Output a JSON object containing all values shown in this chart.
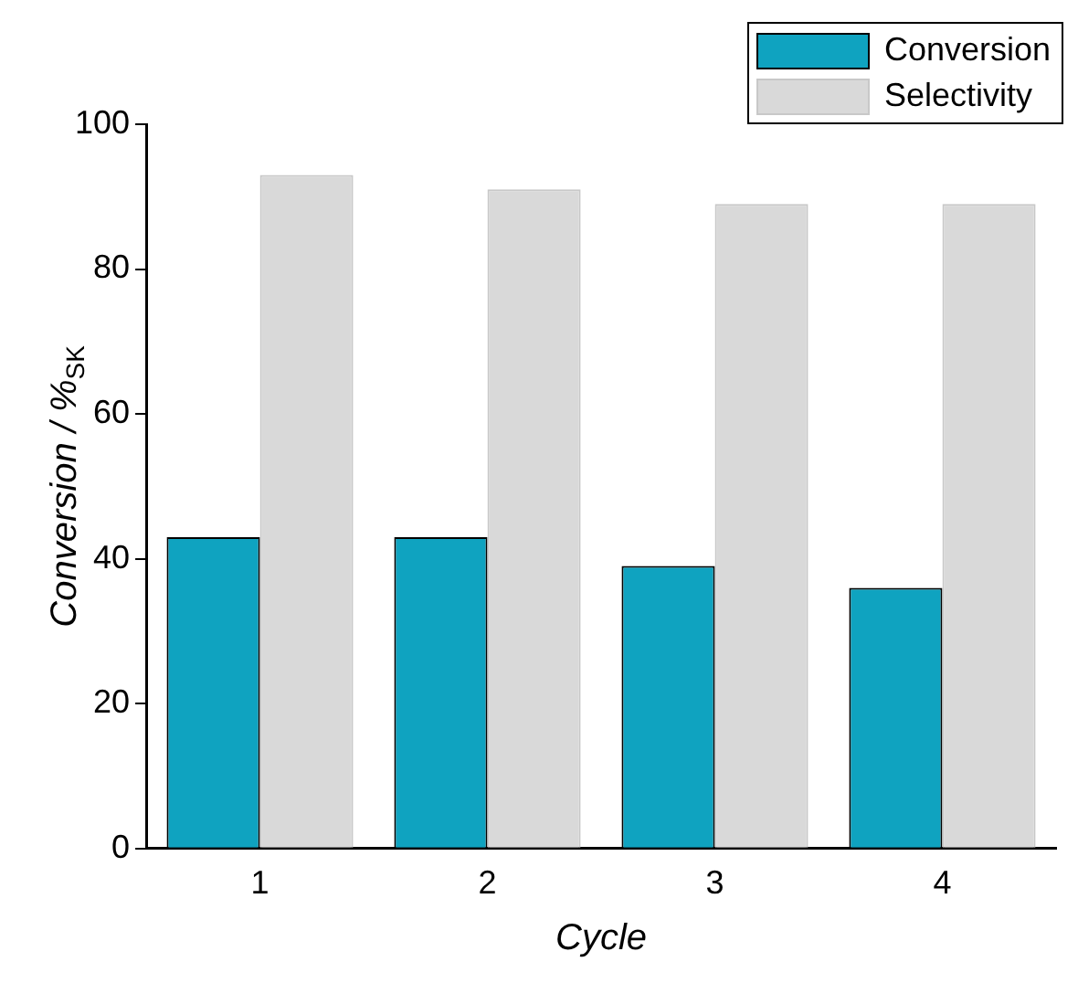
{
  "chart_data": {
    "type": "bar",
    "xlabel": "Cycle",
    "ylabel": "Conversion / %$_{SK}$",
    "categories": [
      "1",
      "2",
      "3",
      "4"
    ],
    "series": [
      {
        "name": "Conversion",
        "color": "#0fa3c0",
        "values": [
          43,
          43,
          39,
          36
        ]
      },
      {
        "name": "Selectivity",
        "color": "#d9d9d9",
        "values": [
          93,
          91,
          89,
          89
        ]
      }
    ],
    "ylim": [
      0,
      100
    ],
    "yticks": [
      0,
      20,
      40,
      60,
      80,
      100
    ],
    "grid": false,
    "legend": "top right"
  }
}
